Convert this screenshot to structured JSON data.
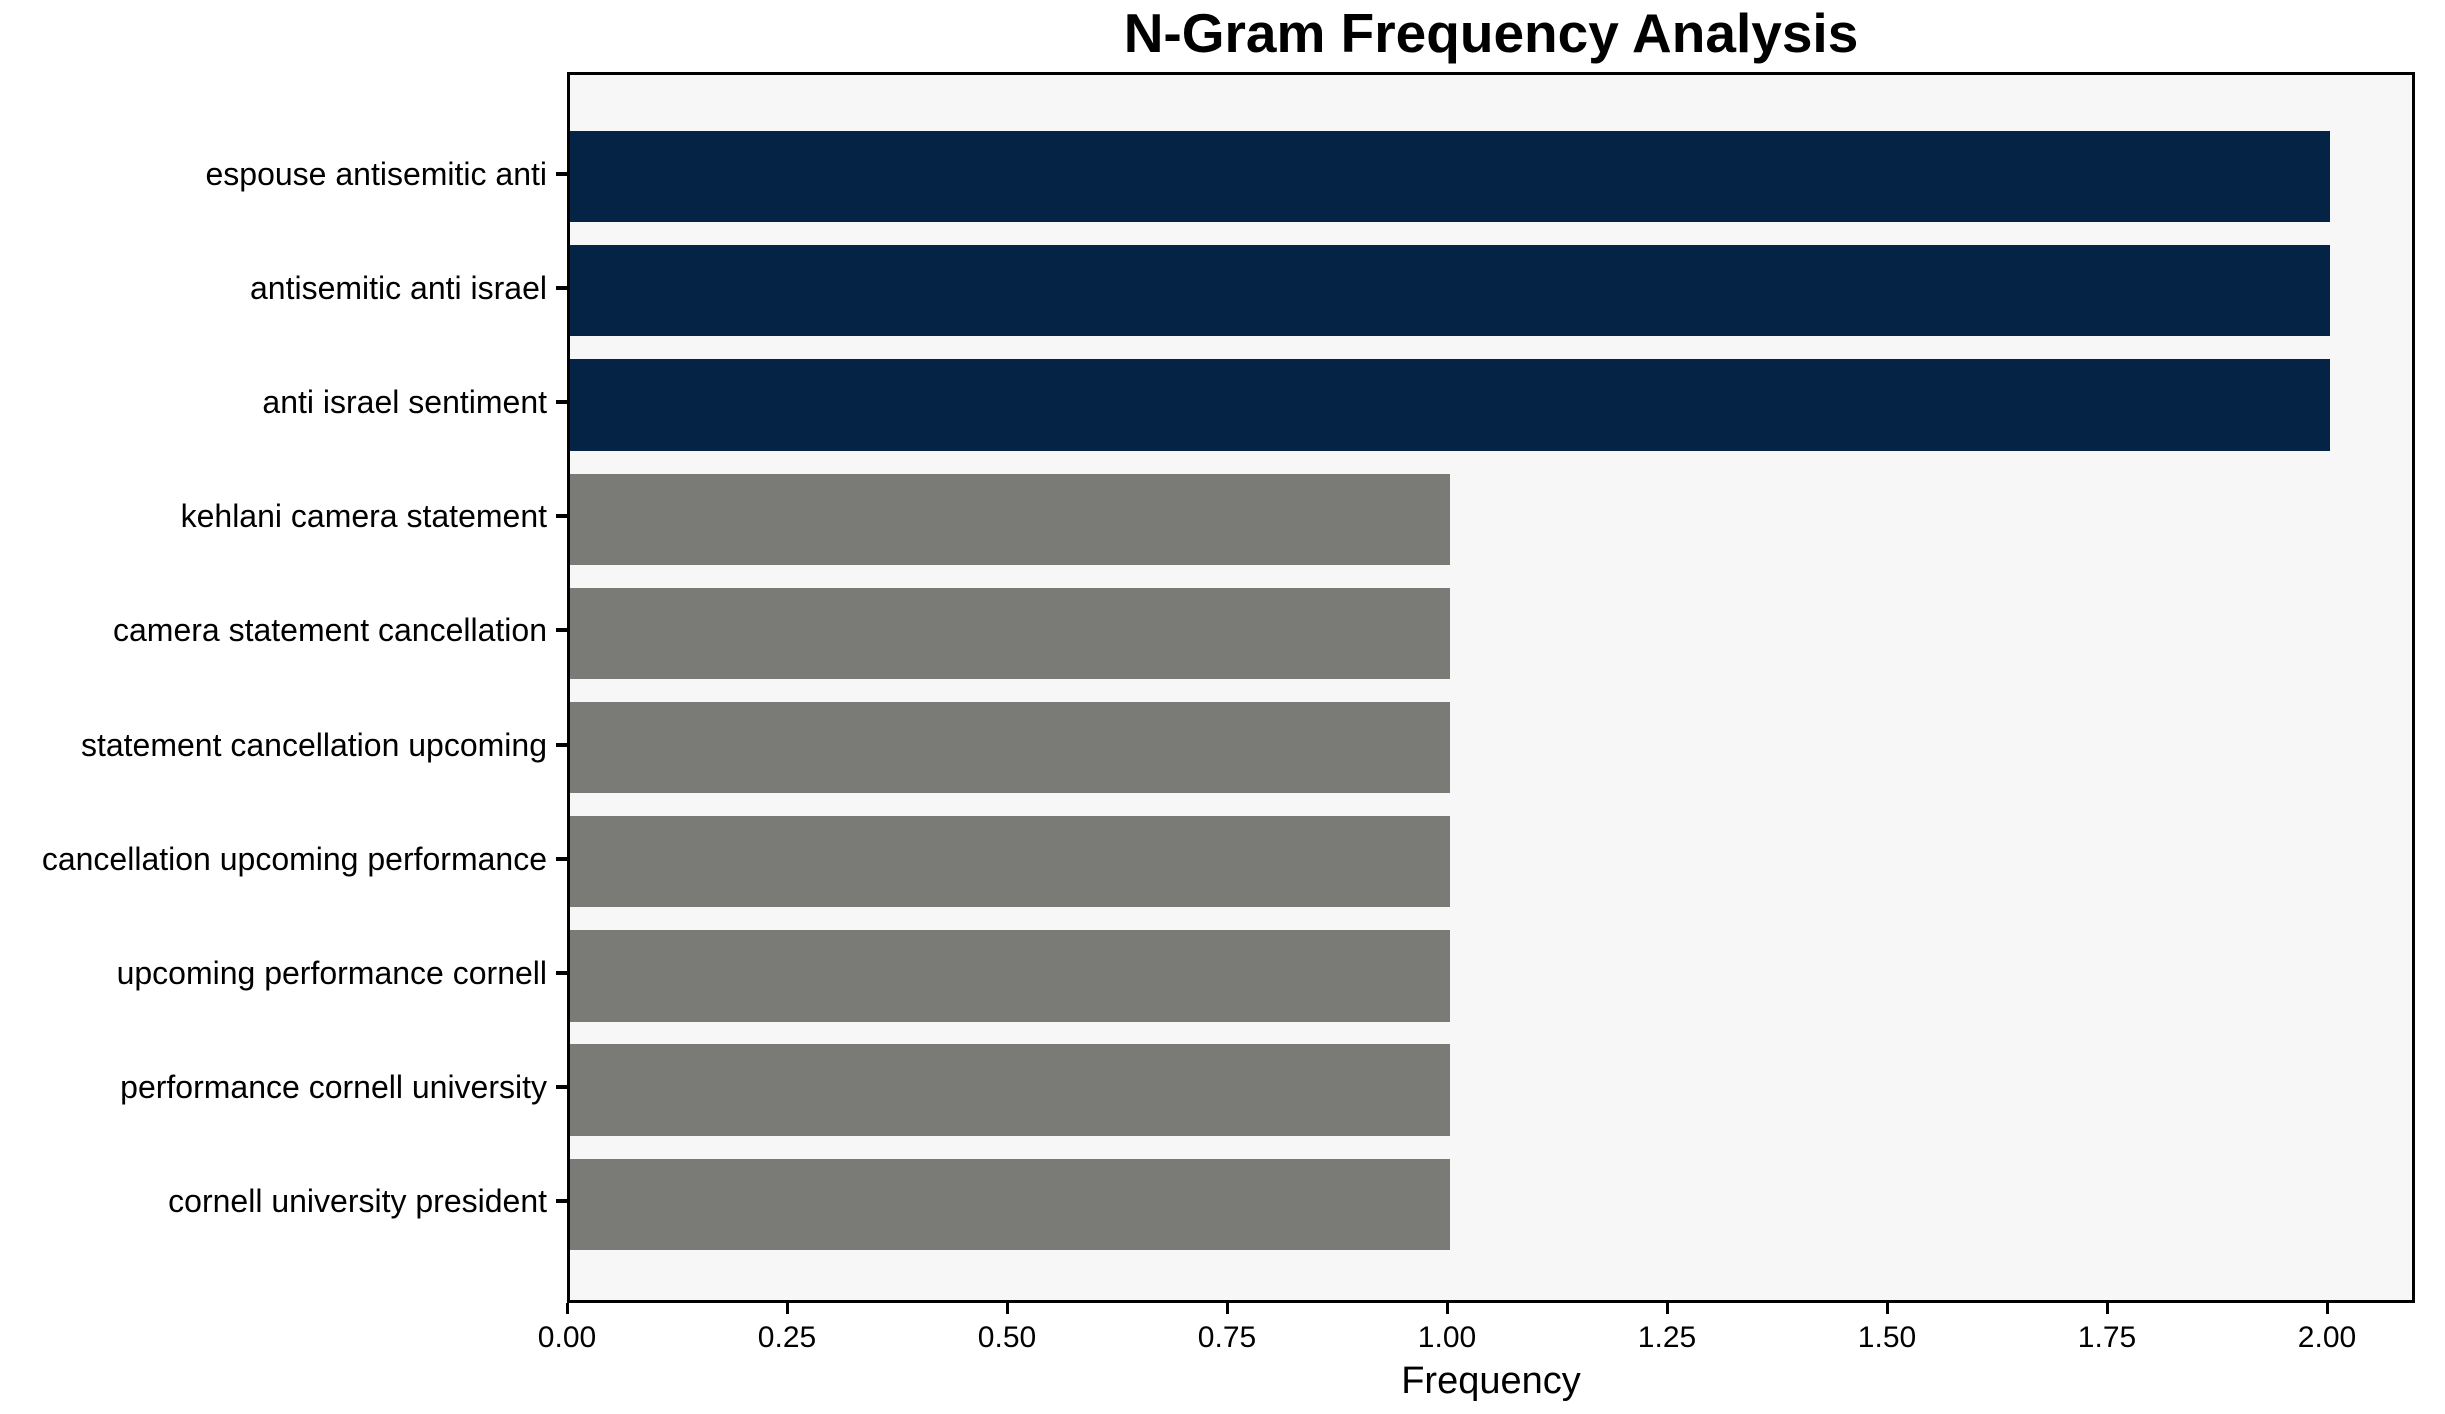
{
  "chart_data": {
    "type": "bar",
    "orientation": "horizontal",
    "title": "N-Gram Frequency Analysis",
    "xlabel": "Frequency",
    "ylabel": "",
    "categories": [
      "espouse antisemitic anti",
      "antisemitic anti israel",
      "anti israel sentiment",
      "kehlani camera statement",
      "camera statement cancellation",
      "statement cancellation upcoming",
      "cancellation upcoming performance",
      "upcoming performance cornell",
      "performance cornell university",
      "cornell university president"
    ],
    "values": [
      2,
      2,
      2,
      1,
      1,
      1,
      1,
      1,
      1,
      1
    ],
    "bar_colors": [
      "#052345",
      "#052345",
      "#052345",
      "#7a7a77",
      "#7a7a77",
      "#7a7a77",
      "#7a7a77",
      "#7a7a77",
      "#7a7a77",
      "#7a7a77"
    ],
    "xlim": [
      0,
      2.1
    ],
    "x_tick_values": [
      0,
      0.25,
      0.5,
      0.75,
      1.0,
      1.25,
      1.5,
      1.75,
      2.0
    ],
    "x_tick_labels": [
      "0.00",
      "0.25",
      "0.50",
      "0.75",
      "1.00",
      "1.25",
      "1.50",
      "1.75",
      "2.00"
    ],
    "grid": false,
    "legend": false,
    "colors": {
      "bar_high": "#052345",
      "bar_low": "#7a7a77",
      "plot_background": "#f7f7f7",
      "axis": "#000000",
      "figure_background": "#ffffff"
    }
  }
}
